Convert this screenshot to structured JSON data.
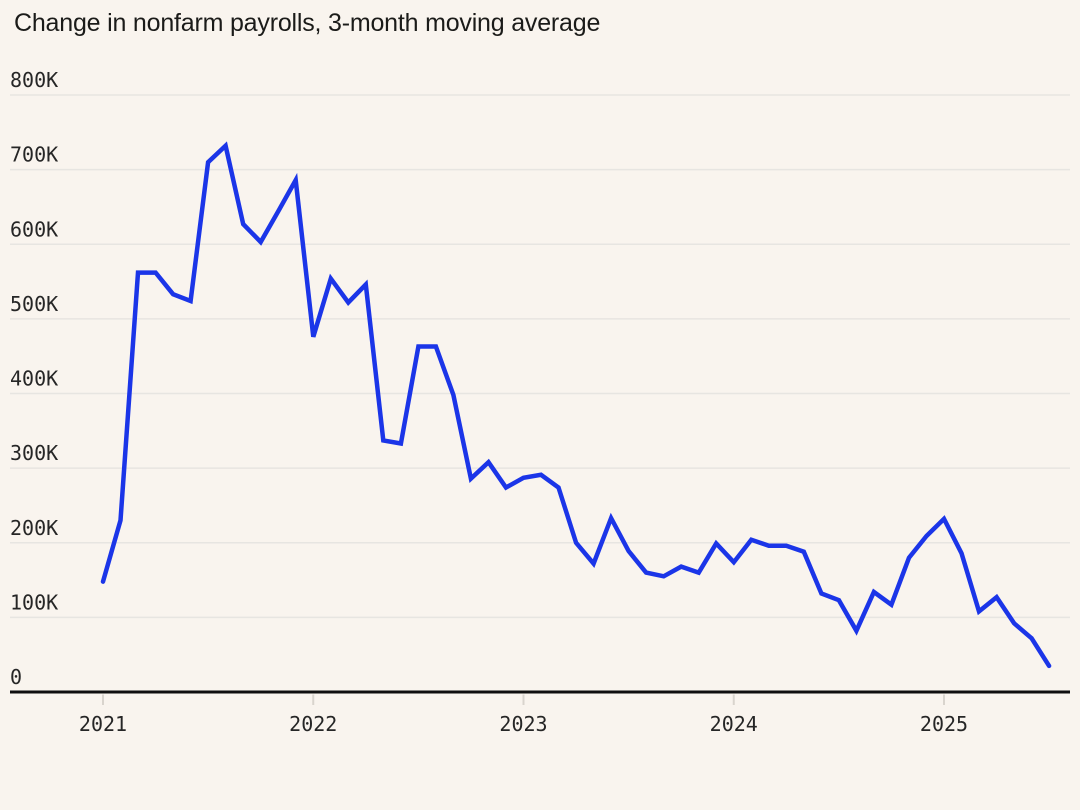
{
  "chart_data": {
    "type": "line",
    "title": "Change in nonfarm payrolls, 3-month moving average",
    "xlabel": "",
    "ylabel": "",
    "unit": "thousands (K) of jobs",
    "grid": "horizontal",
    "legend": "none",
    "ylim": [
      0,
      800
    ],
    "x_range": [
      "2021-01",
      "2025-07"
    ],
    "months": [
      "2021-01",
      "2021-02",
      "2021-03",
      "2021-04",
      "2021-05",
      "2021-06",
      "2021-07",
      "2021-08",
      "2021-09",
      "2021-10",
      "2021-11",
      "2021-12",
      "2022-01",
      "2022-02",
      "2022-03",
      "2022-04",
      "2022-05",
      "2022-06",
      "2022-07",
      "2022-08",
      "2022-09",
      "2022-10",
      "2022-11",
      "2022-12",
      "2023-01",
      "2023-02",
      "2023-03",
      "2023-04",
      "2023-05",
      "2023-06",
      "2023-07",
      "2023-08",
      "2023-09",
      "2023-10",
      "2023-11",
      "2023-12",
      "2024-01",
      "2024-02",
      "2024-03",
      "2024-04",
      "2024-05",
      "2024-06",
      "2024-07",
      "2024-08",
      "2024-09",
      "2024-10",
      "2024-11",
      "2024-12",
      "2025-01",
      "2025-02",
      "2025-03",
      "2025-04",
      "2025-05",
      "2025-06",
      "2025-07"
    ],
    "values_thousands": [
      148,
      230,
      562,
      562,
      533,
      524,
      710,
      732,
      627,
      603,
      644,
      686,
      476,
      554,
      522,
      546,
      337,
      333,
      463,
      463,
      398,
      286,
      308,
      274,
      287,
      291,
      274,
      200,
      172,
      233,
      189,
      160,
      155,
      168,
      160,
      199,
      174,
      204,
      196,
      196,
      188,
      132,
      123,
      82,
      134,
      117,
      180,
      209,
      232,
      186,
      108,
      127,
      92,
      72,
      35
    ],
    "y_ticks": [
      {
        "value": 800,
        "label": "800K"
      },
      {
        "value": 700,
        "label": "700K"
      },
      {
        "value": 600,
        "label": "600K"
      },
      {
        "value": 500,
        "label": "500K"
      },
      {
        "value": 400,
        "label": "400K"
      },
      {
        "value": 300,
        "label": "300K"
      },
      {
        "value": 200,
        "label": "200K"
      },
      {
        "value": 100,
        "label": "100K"
      },
      {
        "value": 0,
        "label": "0"
      }
    ],
    "x_ticks": [
      {
        "label": "2021"
      },
      {
        "label": "2022"
      },
      {
        "label": "2023"
      },
      {
        "label": "2024"
      },
      {
        "label": "2025"
      }
    ],
    "colors": {
      "background": "#f9f4ee",
      "line": "#1b35e8",
      "gridline": "#e7e5e1",
      "axis": "#0f0f0f",
      "tick_mark": "#d9d4cd",
      "text": "#262626",
      "title_text": "#1b1b19"
    }
  }
}
